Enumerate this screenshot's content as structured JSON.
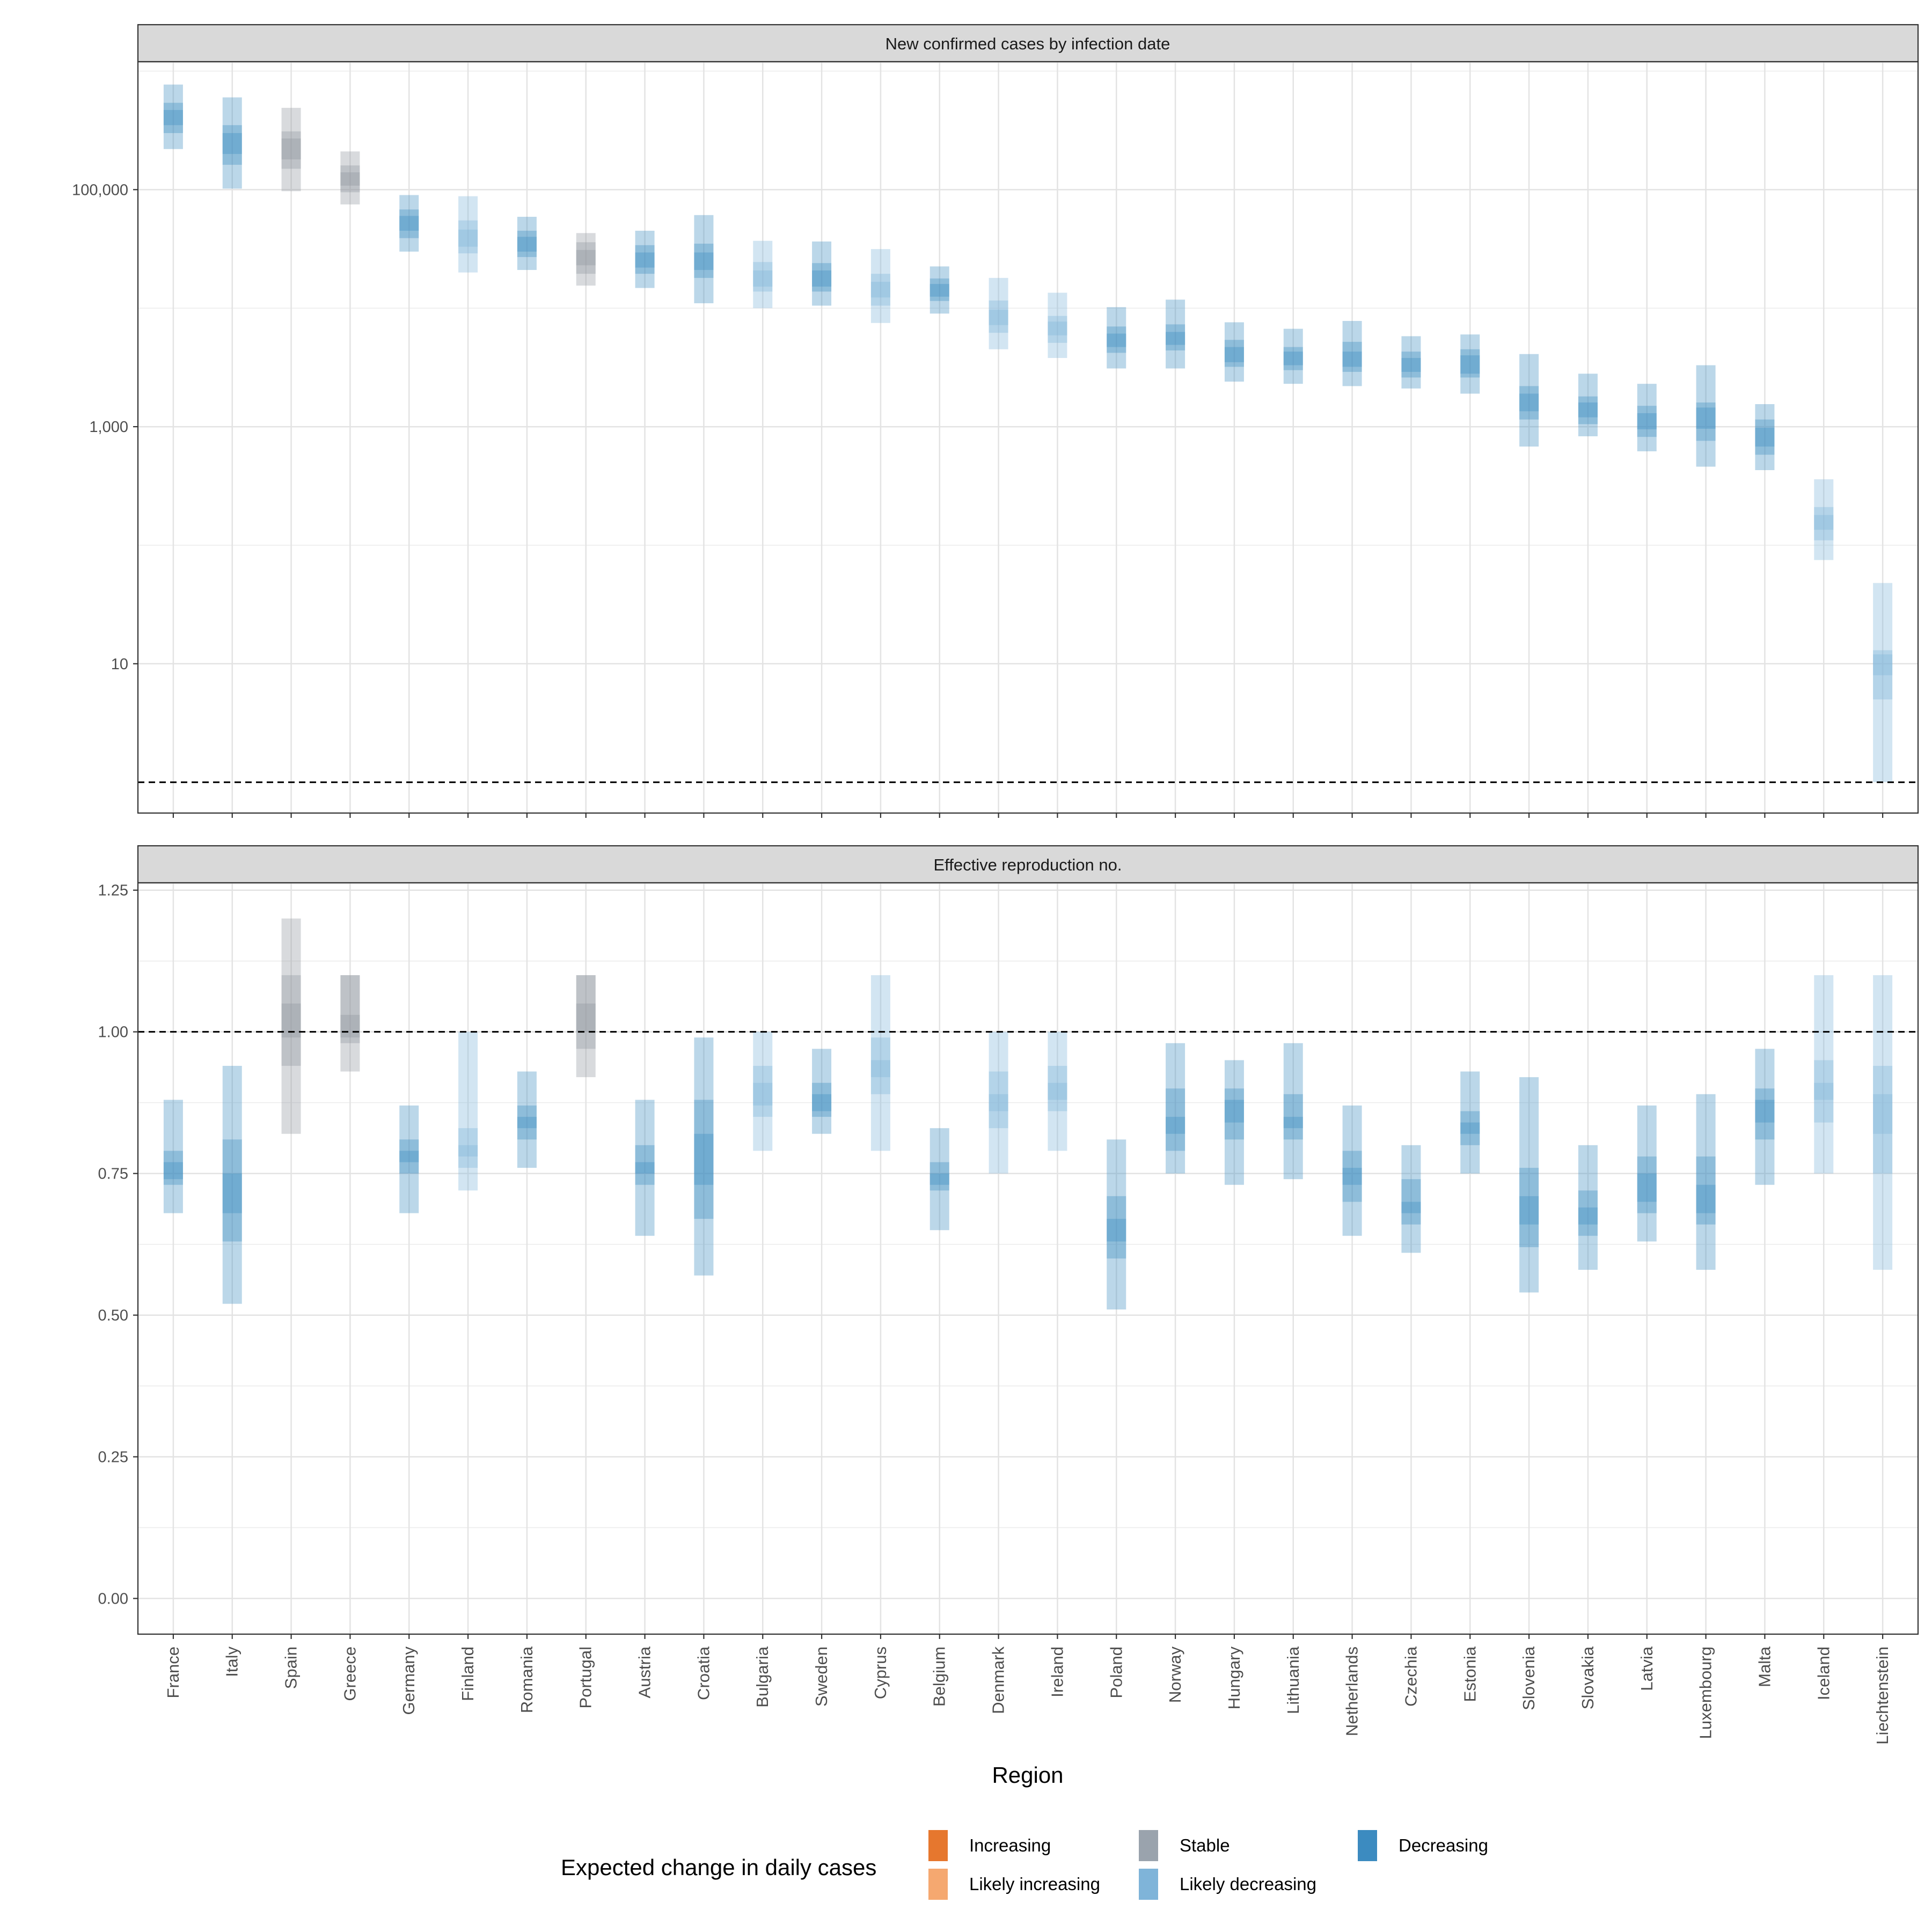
{
  "chart_data": {
    "type": "interval",
    "xlabel": "Region",
    "categories": [
      "France",
      "Italy",
      "Spain",
      "Greece",
      "Germany",
      "Finland",
      "Romania",
      "Portugal",
      "Austria",
      "Croatia",
      "Bulgaria",
      "Sweden",
      "Cyprus",
      "Belgium",
      "Denmark",
      "Ireland",
      "Poland",
      "Norway",
      "Hungary",
      "Lithuania",
      "Netherlands",
      "Czechia",
      "Estonia",
      "Slovenia",
      "Slovakia",
      "Latvia",
      "Luxembourg",
      "Malta",
      "Iceland",
      "Liechtenstein"
    ],
    "category_status": [
      "Decreasing",
      "Decreasing",
      "Stable",
      "Stable",
      "Decreasing",
      "Likely decreasing",
      "Decreasing",
      "Stable",
      "Decreasing",
      "Decreasing",
      "Likely decreasing",
      "Decreasing",
      "Likely decreasing",
      "Decreasing",
      "Likely decreasing",
      "Likely decreasing",
      "Decreasing",
      "Decreasing",
      "Decreasing",
      "Decreasing",
      "Decreasing",
      "Decreasing",
      "Decreasing",
      "Decreasing",
      "Decreasing",
      "Decreasing",
      "Decreasing",
      "Decreasing",
      "Likely decreasing",
      "Likely decreasing"
    ],
    "legend": {
      "title": "Expected change in daily cases",
      "position": "bottom",
      "items": [
        {
          "label": "Increasing",
          "color": "#e6772e"
        },
        {
          "label": "Likely increasing",
          "color": "#f5a870"
        },
        {
          "label": "Stable",
          "color": "#9aa3ad"
        },
        {
          "label": "Likely decreasing",
          "color": "#7fb4d9"
        },
        {
          "label": "Decreasing",
          "color": "#3c8bc0"
        }
      ]
    },
    "colors": {
      "Decreasing": "#3c8bc0",
      "Likely decreasing": "#7fb4d9",
      "Stable": "#8f969e",
      "Likely increasing": "#f5a870",
      "Increasing": "#e6772e"
    },
    "panels": [
      {
        "title": "New confirmed cases by infection date",
        "scale": "log10",
        "ylim": [
          0.55,
          1200000
        ],
        "yticks": [
          10,
          1000,
          100000
        ],
        "ytick_labels": [
          "10",
          "1,000",
          "100,000"
        ],
        "reference_line": 1,
        "intervals_90": [
          [
            220000,
            770000
          ],
          [
            102000,
            600000
          ],
          [
            97000,
            490000
          ],
          [
            75000,
            210000
          ],
          [
            30000,
            90000
          ],
          [
            20000,
            88000
          ],
          [
            21000,
            59000
          ],
          [
            15500,
            43000
          ],
          [
            14800,
            45000
          ],
          [
            11000,
            61000
          ],
          [
            10000,
            37000
          ],
          [
            10500,
            36500
          ],
          [
            7500,
            31500
          ],
          [
            9000,
            22500
          ],
          [
            4500,
            18000
          ],
          [
            3800,
            13500
          ],
          [
            3100,
            10200
          ],
          [
            3100,
            11800
          ],
          [
            2400,
            7600
          ],
          [
            2300,
            6700
          ],
          [
            2200,
            7800
          ],
          [
            2100,
            5800
          ],
          [
            1900,
            6000
          ],
          [
            680,
            4100
          ],
          [
            830,
            2800
          ],
          [
            620,
            2300
          ],
          [
            460,
            3300
          ],
          [
            430,
            1550
          ],
          [
            75,
            360
          ],
          [
            1,
            48
          ]
        ],
        "intervals_50": [
          [
            300000,
            540000
          ],
          [
            162000,
            350000
          ],
          [
            150000,
            310000
          ],
          [
            95000,
            160000
          ],
          [
            39000,
            68000
          ],
          [
            29000,
            55000
          ],
          [
            27000,
            45000
          ],
          [
            19500,
            36000
          ],
          [
            19500,
            34000
          ],
          [
            18000,
            35000
          ],
          [
            13800,
            24500
          ],
          [
            13800,
            24000
          ],
          [
            10500,
            19500
          ],
          [
            11500,
            17800
          ],
          [
            6200,
            11600
          ],
          [
            5100,
            8600
          ],
          [
            4200,
            7000
          ],
          [
            4400,
            7300
          ],
          [
            3200,
            5400
          ],
          [
            3000,
            4700
          ],
          [
            2900,
            5200
          ],
          [
            2600,
            4300
          ],
          [
            2600,
            4500
          ],
          [
            1150,
            2200
          ],
          [
            1050,
            1800
          ],
          [
            820,
            1500
          ],
          [
            760,
            1600
          ],
          [
            580,
            1150
          ],
          [
            110,
            210
          ],
          [
            5,
            13
          ]
        ],
        "intervals_20": [
          [
            350000,
            470000
          ],
          [
            200000,
            300000
          ],
          [
            180000,
            270000
          ],
          [
            108000,
            140000
          ],
          [
            45000,
            60000
          ],
          [
            33000,
            46000
          ],
          [
            30000,
            40000
          ],
          [
            23000,
            31000
          ],
          [
            22000,
            29500
          ],
          [
            21000,
            29500
          ],
          [
            15200,
            20800
          ],
          [
            15200,
            20800
          ],
          [
            12300,
            16700
          ],
          [
            12500,
            16000
          ],
          [
            7200,
            9700
          ],
          [
            5900,
            7700
          ],
          [
            4700,
            6100
          ],
          [
            4900,
            6300
          ],
          [
            3500,
            4700
          ],
          [
            3300,
            4300
          ],
          [
            3200,
            4300
          ],
          [
            2900,
            3800
          ],
          [
            2800,
            4000
          ],
          [
            1350,
            1900
          ],
          [
            1200,
            1600
          ],
          [
            950,
            1300
          ],
          [
            960,
            1450
          ],
          [
            680,
            980
          ],
          [
            135,
            180
          ],
          [
            8,
            12
          ]
        ]
      },
      {
        "title": "Effective reproduction no.",
        "scale": "linear",
        "ylim": [
          -0.063,
          1.263
        ],
        "yticks": [
          0,
          0.25,
          0.5,
          0.75,
          1.0,
          1.25
        ],
        "ytick_labels": [
          "0.00",
          "0.25",
          "0.50",
          "0.75",
          "1.00",
          "1.25"
        ],
        "reference_line": 1.0,
        "intervals_90": [
          [
            0.68,
            0.88
          ],
          [
            0.52,
            0.94
          ],
          [
            0.82,
            1.2
          ],
          [
            0.93,
            1.1
          ],
          [
            0.68,
            0.87
          ],
          [
            0.72,
            1.0
          ],
          [
            0.76,
            0.93
          ],
          [
            0.92,
            1.1
          ],
          [
            0.64,
            0.88
          ],
          [
            0.57,
            0.99
          ],
          [
            0.79,
            1.0
          ],
          [
            0.82,
            0.97
          ],
          [
            0.79,
            1.1
          ],
          [
            0.65,
            0.83
          ],
          [
            0.75,
            1.0
          ],
          [
            0.79,
            1.0
          ],
          [
            0.51,
            0.81
          ],
          [
            0.75,
            0.98
          ],
          [
            0.73,
            0.95
          ],
          [
            0.74,
            0.98
          ],
          [
            0.64,
            0.87
          ],
          [
            0.61,
            0.8
          ],
          [
            0.75,
            0.93
          ],
          [
            0.54,
            0.92
          ],
          [
            0.58,
            0.8
          ],
          [
            0.63,
            0.87
          ],
          [
            0.58,
            0.89
          ],
          [
            0.73,
            0.97
          ],
          [
            0.75,
            1.1
          ],
          [
            0.58,
            1.1
          ]
        ],
        "intervals_50": [
          [
            0.73,
            0.79
          ],
          [
            0.63,
            0.81
          ],
          [
            0.94,
            1.1
          ],
          [
            0.98,
            1.1
          ],
          [
            0.75,
            0.81
          ],
          [
            0.76,
            0.83
          ],
          [
            0.81,
            0.87
          ],
          [
            0.97,
            1.1
          ],
          [
            0.73,
            0.8
          ],
          [
            0.67,
            0.88
          ],
          [
            0.85,
            0.94
          ],
          [
            0.85,
            0.91
          ],
          [
            0.89,
            0.99
          ],
          [
            0.72,
            0.77
          ],
          [
            0.83,
            0.93
          ],
          [
            0.86,
            0.94
          ],
          [
            0.6,
            0.71
          ],
          [
            0.79,
            0.9
          ],
          [
            0.81,
            0.9
          ],
          [
            0.81,
            0.89
          ],
          [
            0.7,
            0.79
          ],
          [
            0.66,
            0.74
          ],
          [
            0.8,
            0.86
          ],
          [
            0.62,
            0.76
          ],
          [
            0.64,
            0.72
          ],
          [
            0.68,
            0.78
          ],
          [
            0.66,
            0.78
          ],
          [
            0.81,
            0.9
          ],
          [
            0.84,
            0.95
          ],
          [
            0.75,
            0.94
          ]
        ],
        "intervals_20": [
          [
            0.74,
            0.77
          ],
          [
            0.68,
            0.75
          ],
          [
            0.99,
            1.05
          ],
          [
            0.99,
            1.03
          ],
          [
            0.77,
            0.79
          ],
          [
            0.78,
            0.8
          ],
          [
            0.83,
            0.85
          ],
          [
            1.0,
            1.05
          ],
          [
            0.75,
            0.77
          ],
          [
            0.73,
            0.82
          ],
          [
            0.87,
            0.91
          ],
          [
            0.86,
            0.89
          ],
          [
            0.92,
            0.95
          ],
          [
            0.73,
            0.75
          ],
          [
            0.86,
            0.89
          ],
          [
            0.88,
            0.91
          ],
          [
            0.63,
            0.67
          ],
          [
            0.82,
            0.85
          ],
          [
            0.84,
            0.88
          ],
          [
            0.83,
            0.85
          ],
          [
            0.73,
            0.76
          ],
          [
            0.68,
            0.7
          ],
          [
            0.82,
            0.84
          ],
          [
            0.66,
            0.71
          ],
          [
            0.66,
            0.69
          ],
          [
            0.7,
            0.75
          ],
          [
            0.68,
            0.73
          ],
          [
            0.84,
            0.88
          ],
          [
            0.88,
            0.91
          ],
          [
            0.82,
            0.89
          ]
        ]
      }
    ]
  }
}
